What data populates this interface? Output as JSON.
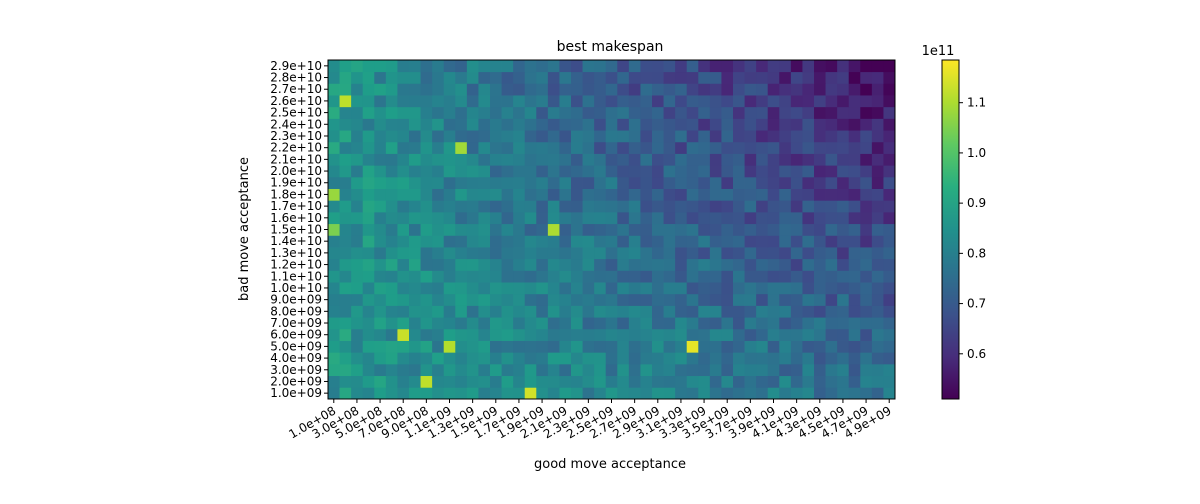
{
  "chart_data": {
    "type": "heatmap",
    "title": "best makespan",
    "xlabel": "good move acceptance",
    "ylabel": "bad move acceptance",
    "colormap": "viridis",
    "x_tick_labels": [
      "1.0e+08",
      "3.0e+08",
      "5.0e+08",
      "7.0e+08",
      "9.0e+08",
      "1.1e+09",
      "1.3e+09",
      "1.5e+09",
      "1.7e+09",
      "1.9e+09",
      "2.1e+09",
      "2.3e+09",
      "2.5e+09",
      "2.7e+09",
      "2.9e+09",
      "3.1e+09",
      "3.3e+09",
      "3.5e+09",
      "3.7e+09",
      "3.9e+09",
      "4.1e+09",
      "4.3e+09",
      "4.5e+09",
      "4.7e+09",
      "4.9e+09"
    ],
    "y_tick_labels": [
      "1.0e+09",
      "2.0e+09",
      "3.0e+09",
      "4.0e+09",
      "5.0e+09",
      "6.0e+09",
      "7.0e+09",
      "8.0e+09",
      "9.0e+09",
      "1.0e+10",
      "1.1e+10",
      "1.2e+10",
      "1.3e+10",
      "1.4e+10",
      "1.5e+10",
      "1.6e+10",
      "1.7e+10",
      "1.8e+10",
      "1.9e+10",
      "2.0e+10",
      "2.1e+10",
      "2.2e+10",
      "2.3e+10",
      "2.4e+10",
      "2.5e+10",
      "2.6e+10",
      "2.7e+10",
      "2.8e+10",
      "2.9e+10"
    ],
    "x_range": [
      100000000.0,
      4900000000.0
    ],
    "y_range": [
      1000000000.0,
      29000000000.0
    ],
    "n_cols": 49,
    "n_rows": 29,
    "colorbar": {
      "offset_label": "1e11",
      "vmin": 0.51,
      "vmax": 1.185,
      "ticks": [
        0.6,
        0.7,
        0.8,
        0.9,
        1.0,
        1.1
      ],
      "tick_labels": [
        "0.6",
        "0.7",
        "0.8",
        "0.9",
        "1.0",
        "1.1"
      ]
    },
    "hotspots": [
      {
        "x": 100000000.0,
        "y": 18000000000.0,
        "value": 1.08
      },
      {
        "x": 100000000.0,
        "y": 15000000000.0,
        "value": 1.05
      },
      {
        "x": 200000000.0,
        "y": 26000000000.0,
        "value": 1.12
      },
      {
        "x": 700000000.0,
        "y": 6000000000.0,
        "value": 1.13
      },
      {
        "x": 900000000.0,
        "y": 2000000000.0,
        "value": 1.12
      },
      {
        "x": 1100000000.0,
        "y": 5000000000.0,
        "value": 1.11
      },
      {
        "x": 1200000000.0,
        "y": 22000000000.0,
        "value": 1.09
      },
      {
        "x": 1800000000.0,
        "y": 1000000000.0,
        "value": 1.14
      },
      {
        "x": 2000000000.0,
        "y": 15000000000.0,
        "value": 1.1
      },
      {
        "x": 3200000000.0,
        "y": 5000000000.0,
        "value": 1.16
      }
    ],
    "grid": false,
    "legend": "colorbar-right"
  }
}
